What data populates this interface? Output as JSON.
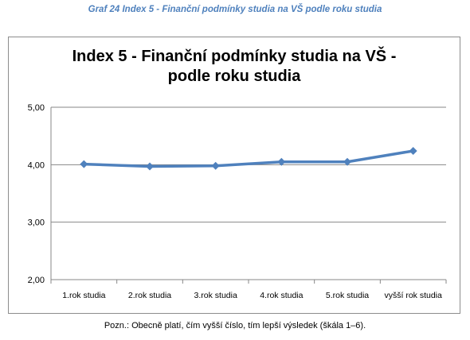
{
  "caption": "Graf 24 Index 5 - Finanční podmínky studia na VŠ podle roku studia",
  "footnote": "Pozn.: Obecně platí, čím vyšší číslo, tím lepší výsledek (škála 1–6).",
  "chart_data": {
    "type": "line",
    "title_lines": [
      "Index  5 - Finanční podmínky studia na VŠ -",
      "podle roku studia"
    ],
    "categories": [
      "1.rok studia",
      "2.rok studia",
      "3.rok studia",
      "4.rok studia",
      "5.rok studia",
      "vyšší rok studia"
    ],
    "series": [
      {
        "values": [
          4.01,
          3.97,
          3.98,
          4.05,
          4.05,
          4.24
        ]
      }
    ],
    "ylim": [
      2.0,
      5.0
    ],
    "yticks": [
      2.0,
      3.0,
      4.0,
      5.0
    ],
    "ytick_labels": [
      "2,00",
      "3,00",
      "4,00",
      "5,00"
    ],
    "grid": true,
    "legend": "none",
    "colors": {
      "line": "#4f81bd",
      "grid": "#878787",
      "axis": "#878787"
    }
  }
}
